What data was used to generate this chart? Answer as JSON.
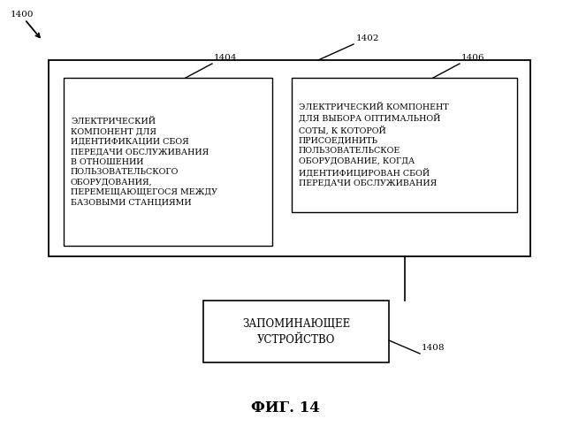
{
  "bg_color": "#ffffff",
  "label_1400": "1400",
  "label_1402": "1402",
  "label_1404": "1404",
  "label_1406": "1406",
  "label_1408": "1408",
  "text_1404": "ЭЛЕКТРИЧЕСКИЙ\nКОМПОНЕНТ ДЛЯ\nИДЕНТИФИКАЦИИ СБОЯ\nПЕРЕДАЧИ ОБСЛУЖИВАНИЯ\nВ ОТНОШЕНИИ\nПОЛЬЗОВАТЕЛЬСКОГО\nОБОРУДОВАНИЯ,\nПЕРЕМЕЩАЮЩЕГОСЯ МЕЖДУ\nБАЗОВЫМИ СТАНЦИЯМИ",
  "text_1406": "ЭЛЕКТРИЧЕСКИЙ КОМПОНЕНТ\nДЛЯ ВЫБОРА ОПТИМАЛЬНОЙ\nСОТЫ, К КОТОРОЙ\nПРИСОЕДИНИТЬ\nПОЛЬЗОВАТЕЛЬСКОЕ\nОБОРУДОВАНИЕ, КОГДА\nИДЕНТИФИЦИРОВАН СБОЙ\nПЕРЕДАЧИ ОБСЛУЖИВАНИЯ",
  "text_1408": "ЗАПОМИНАЮЩЕЕ\nУСТРОЙСТВО",
  "caption": "ФИГ. 14",
  "font_size_inner": 6.8,
  "font_size_label": 7.5,
  "font_size_caption": 12,
  "font_size_mem": 8.5
}
